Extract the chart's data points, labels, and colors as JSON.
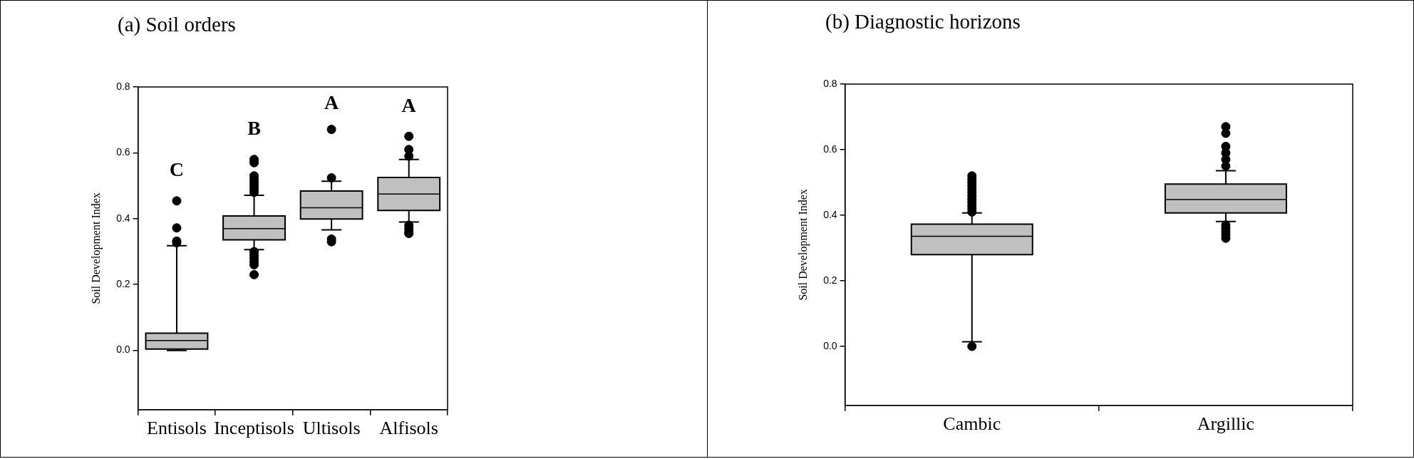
{
  "chart_data": [
    {
      "type": "box",
      "title": "(a) Soil orders",
      "ylabel": "Soil Development Index",
      "categories": [
        "Entisols",
        "Inceptisols",
        "Ultisols",
        "Alfisols"
      ],
      "series": [
        {
          "color": "#c0c0c0",
          "boxes": [
            {
              "low": 0,
              "q1": 0.004,
              "median": 0.03,
              "q3": 0.052,
              "high": 0.318,
              "outliers": [
                0.454,
                0.372,
                0.332,
                0.327
              ]
            },
            {
              "low": 0.306,
              "q1": 0.336,
              "median": 0.37,
              "q3": 0.408,
              "high": 0.471,
              "outliers": [
                0.48,
                0.49,
                0.5,
                0.51,
                0.52,
                0.53,
                0.57,
                0.58,
                0.3,
                0.29,
                0.28,
                0.27,
                0.26,
                0.23
              ]
            },
            {
              "low": 0.366,
              "q1": 0.399,
              "median": 0.433,
              "q3": 0.484,
              "high": 0.514,
              "outliers": [
                0.671,
                0.524,
                0.338,
                0.33
              ]
            },
            {
              "low": 0.39,
              "q1": 0.425,
              "median": 0.475,
              "q3": 0.525,
              "high": 0.58,
              "outliers": [
                0.65,
                0.61,
                0.59,
                0.38,
                0.37,
                0.36,
                0.355
              ]
            }
          ]
        }
      ],
      "ylim": [
        -0.18,
        0.8
      ],
      "yticks": [
        {
          "value": 0,
          "label": "0.0"
        },
        0.2,
        0.4,
        0.6,
        0.8
      ],
      "grid": false,
      "annotations": [
        "C",
        "B",
        "A",
        "A"
      ]
    },
    {
      "type": "box",
      "title": "(b) Diagnostic horizons",
      "ylabel": "Soil Development Index",
      "categories": [
        "Cambic",
        "Argillic"
      ],
      "series": [
        {
          "color": "#c0c0c0",
          "boxes": [
            {
              "low": 0.014,
              "q1": 0.28,
              "median": 0.336,
              "q3": 0.373,
              "high": 0.407,
              "outliers": [
                0.41,
                0.42,
                0.43,
                0.44,
                0.45,
                0.46,
                0.47,
                0.48,
                0.49,
                0.5,
                0.51,
                0.52,
                0
              ]
            },
            {
              "low": 0.381,
              "q1": 0.407,
              "median": 0.448,
              "q3": 0.495,
              "high": 0.536,
              "outliers": [
                0.55,
                0.57,
                0.59,
                0.61,
                0.65,
                0.67,
                0.37,
                0.36,
                0.35,
                0.34,
                0.33
              ]
            }
          ]
        }
      ],
      "ylim": [
        -0.18,
        0.8
      ],
      "yticks": [
        {
          "value": 0,
          "label": "0.0"
        },
        0.2,
        0.4,
        0.6,
        0.8
      ],
      "grid": false
    }
  ]
}
